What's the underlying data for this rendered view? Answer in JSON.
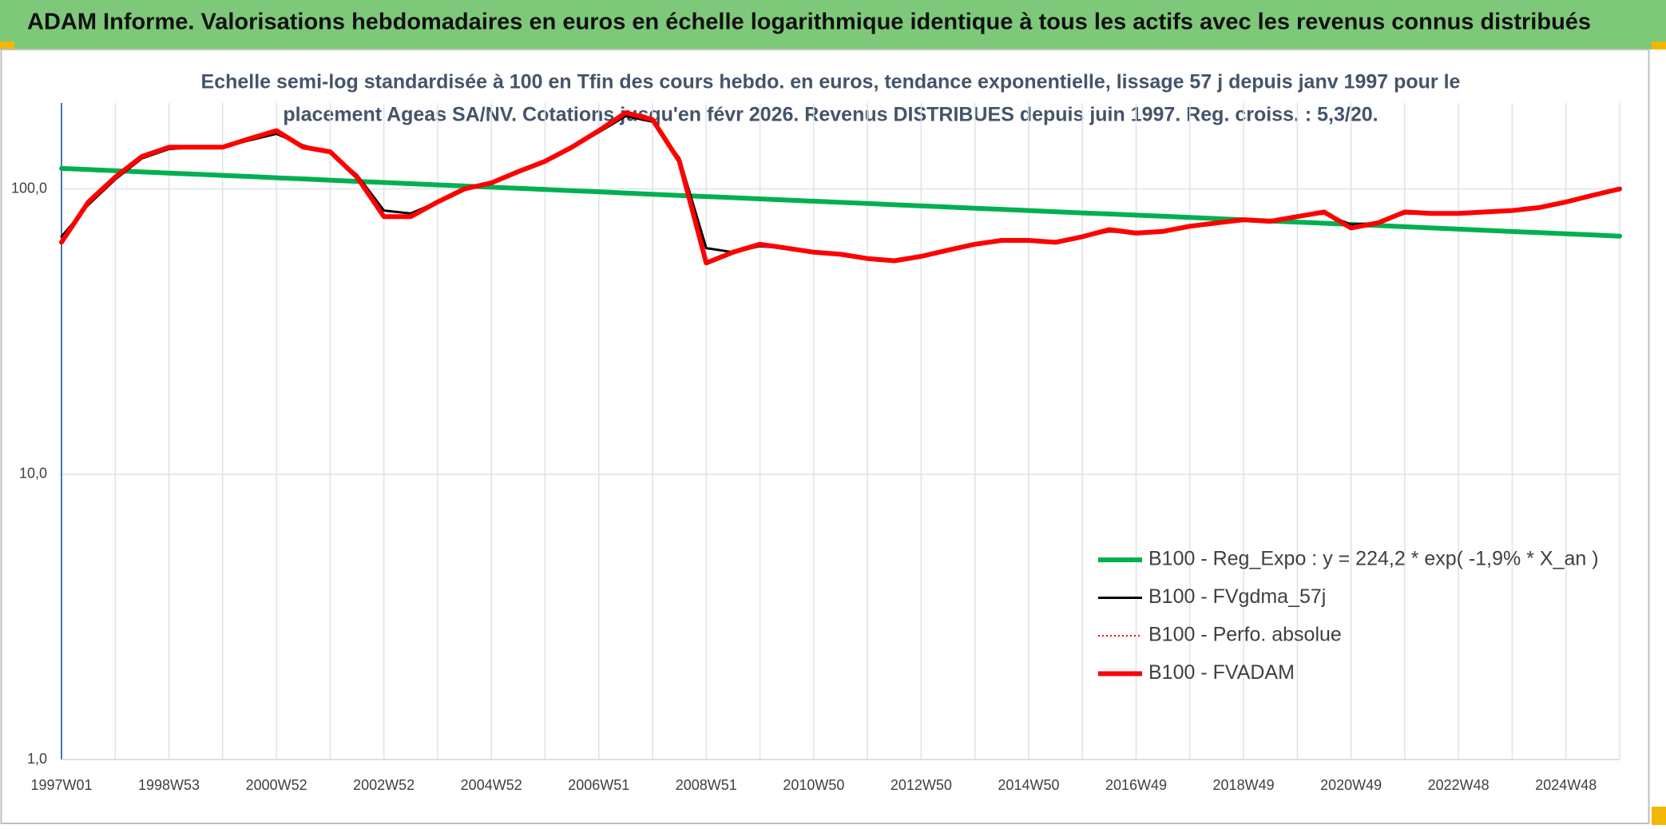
{
  "chart_data": {
    "type": "line",
    "title": "ADAM Informe. Valorisations hebdomadaires en euros en échelle logarithmique identique à tous les actifs avec les revenus connus distribués",
    "subtitle": [
      "Echelle semi-log standardisée à 100 en Tfin des cours hebdo. en euros, tendance exponentielle, lissage 57 j depuis janv 1997 pour le",
      "placement Ageas SA/NV. Cotations jusqu'en févr 2026. Revenus DISTRIBUES depuis juin 1997. Reg. croiss. : 5,3/20."
    ],
    "categories": [
      "1997W01",
      null,
      null,
      null,
      "1998W53",
      null,
      null,
      null,
      "2000W52",
      null,
      null,
      null,
      "2002W52",
      null,
      null,
      null,
      "2004W52",
      null,
      null,
      null,
      "2006W51",
      null,
      null,
      null,
      "2008W51",
      null,
      null,
      null,
      "2010W50",
      null,
      null,
      null,
      "2012W50",
      null,
      null,
      null,
      "2014W50",
      null,
      null,
      null,
      "2016W49",
      null,
      null,
      null,
      "2018W49",
      null,
      null,
      null,
      "2020W49",
      null,
      null,
      null,
      "2022W48",
      null,
      null,
      null,
      "2024W48",
      null,
      null
    ],
    "log_scale": true,
    "ylim": [
      1,
      200
    ],
    "yticks": [
      {
        "value": 1,
        "label": "1,0"
      },
      {
        "value": 10,
        "label": "10,0"
      },
      {
        "value": 100,
        "label": "100,0"
      }
    ],
    "grid": true,
    "legend": "lower-right",
    "series": [
      {
        "name": "B100 - Reg_Expo : y = 224,2 * exp( -1,9% *  X_an )",
        "color": "#00b050",
        "values": [
          118.0,
          116.9,
          115.8,
          114.7,
          113.6,
          112.6,
          111.5,
          110.5,
          109.4,
          108.4,
          107.3,
          106.3,
          105.3,
          104.3,
          103.3,
          102.4,
          101.4,
          100.5,
          99.5,
          98.6,
          97.7,
          96.7,
          95.8,
          94.9,
          94.0,
          93.2,
          92.3,
          91.4,
          90.6,
          89.7,
          88.9,
          88.0,
          87.2,
          86.4,
          85.6,
          84.8,
          84.0,
          83.2,
          82.4,
          81.7,
          80.9,
          80.2,
          79.4,
          78.7,
          77.9,
          77.2,
          76.5,
          75.8,
          75.1,
          74.4,
          73.7,
          73.0,
          72.3,
          71.6,
          70.9,
          70.3,
          69.6,
          69.0,
          68.3
        ]
      },
      {
        "name": "B100 - FVgdma_57j",
        "color": "#000000",
        "values": [
          68,
          88,
          108,
          128,
          138,
          140,
          140,
          148,
          156,
          142,
          134,
          112,
          84,
          82,
          90,
          99,
          105,
          114,
          124,
          139,
          158,
          180,
          172,
          128,
          62,
          60,
          63,
          62,
          60,
          59,
          57,
          56,
          58,
          61,
          64,
          66,
          66,
          65,
          68,
          71,
          70,
          71,
          74,
          76,
          78,
          77,
          80,
          82,
          75,
          76,
          82,
          82,
          82,
          83,
          84,
          86,
          90,
          95,
          99
        ]
      },
      {
        "name": "B100 - Perfo. absolue",
        "color": "#ff0000",
        "dash": "dotted",
        "values": [
          65,
          90,
          110,
          130,
          140,
          140,
          140,
          150,
          160,
          140,
          135,
          110,
          80,
          80,
          90,
          100,
          105,
          115,
          125,
          140,
          160,
          185,
          175,
          125,
          55,
          60,
          64,
          62,
          60,
          59,
          57,
          56,
          58,
          61,
          64,
          66,
          66,
          65,
          68,
          72,
          70,
          71,
          74,
          76,
          78,
          77,
          80,
          83,
          73,
          76,
          83,
          82,
          82,
          83,
          84,
          86,
          90,
          95,
          100
        ]
      },
      {
        "name": "B100 - FVADAM",
        "color": "#ff0000",
        "values": [
          65,
          90,
          110,
          130,
          140,
          140,
          140,
          150,
          160,
          140,
          135,
          110,
          80,
          80,
          90,
          100,
          105,
          115,
          125,
          140,
          160,
          185,
          175,
          125,
          55,
          60,
          64,
          62,
          60,
          59,
          57,
          56,
          58,
          61,
          64,
          66,
          66,
          65,
          68,
          72,
          70,
          71,
          74,
          76,
          78,
          77,
          80,
          83,
          73,
          76,
          83,
          82,
          82,
          83,
          84,
          86,
          90,
          95,
          100
        ]
      }
    ]
  }
}
